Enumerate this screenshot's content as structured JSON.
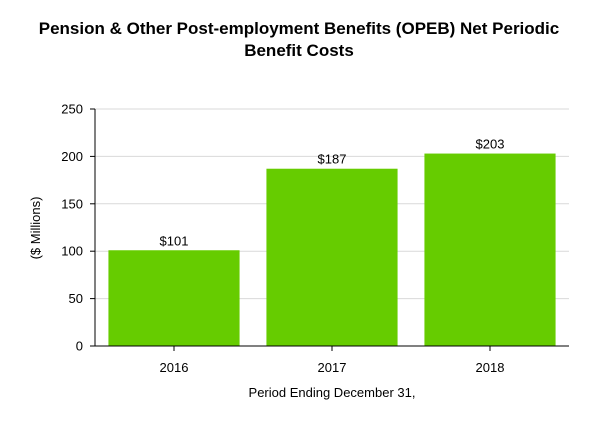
{
  "chart_data": {
    "type": "bar",
    "title_lines": [
      "Pension & Other Post-employment Benefits (OPEB) Net Periodic",
      "Benefit Costs"
    ],
    "xlabel": "Period Ending December 31,",
    "ylabel": "($ Millions)",
    "categories": [
      "2016",
      "2017",
      "2018"
    ],
    "values": [
      101,
      187,
      203
    ],
    "data_labels": [
      "$101",
      "$187",
      "$203"
    ],
    "ylim": [
      0,
      250
    ],
    "yticks": [
      0,
      50,
      100,
      150,
      200,
      250
    ],
    "grid": true,
    "legend": "none",
    "bar_color": "#66cc00",
    "grid_color": "#d9d9d9"
  }
}
